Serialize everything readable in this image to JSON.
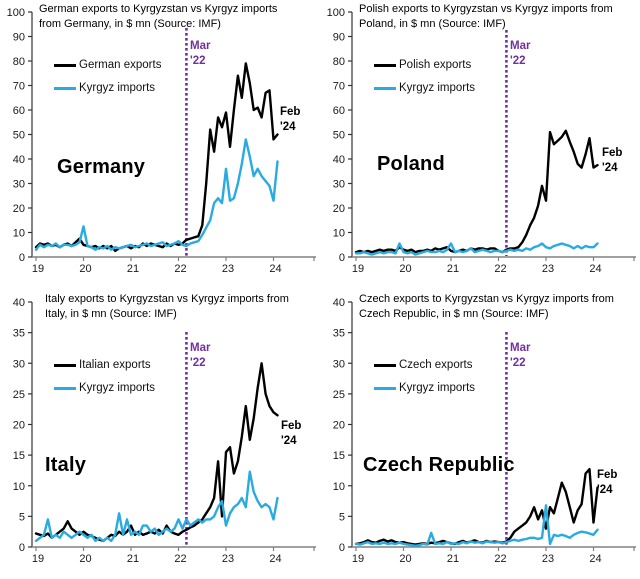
{
  "colors": {
    "export_line": "#000000",
    "import_line": "#29ABE2",
    "vline": "#7030A0",
    "x_axis": "#808080",
    "y_axis": "#333333",
    "tick_text": "#1a1a1a"
  },
  "chart_data": [
    {
      "id": "germany",
      "type": "line",
      "title_line1": "German exports to Kyrgyzstan vs Kyrgyz imports",
      "title_line2": "from Germany, in $ mn (Source: IMF)",
      "country_label": "Germany",
      "legend": [
        "German exports",
        "Kyrgyz imports"
      ],
      "ylim": [
        0,
        100
      ],
      "ytick_step": 10,
      "x_tick_labels": [
        "19",
        "20",
        "21",
        "22",
        "23",
        "24"
      ],
      "x_range": "monthly, Jan 2019 to Feb 2024",
      "vline": {
        "label_line1": "Mar",
        "label_line2": "'22",
        "month_index": 38
      },
      "end_label": {
        "line1": "Feb",
        "line2": "'24"
      },
      "series": [
        {
          "key": "exports",
          "name": "German exports",
          "color": "#000000",
          "values": [
            4,
            5.5,
            5,
            5.5,
            4.5,
            5,
            4,
            5,
            5.5,
            4.5,
            6,
            7.5,
            5,
            4.5,
            4,
            4.5,
            3.5,
            4.5,
            3.5,
            4.5,
            2.5,
            3.5,
            4,
            4.5,
            3.5,
            4.5,
            4,
            5.5,
            4.5,
            5.5,
            5,
            4.5,
            4,
            5.5,
            4.5,
            5.5,
            5,
            5.5,
            7,
            7.5,
            8,
            8.5,
            13,
            30,
            52,
            43,
            57,
            53,
            59,
            45,
            60,
            74,
            65,
            79,
            71,
            60,
            61,
            57,
            67,
            68,
            48,
            50
          ]
        },
        {
          "key": "imports",
          "name": "Kyrgyz imports",
          "color": "#29ABE2",
          "values": [
            3,
            5,
            4,
            5,
            4.5,
            5.5,
            4,
            5,
            5,
            4.5,
            5,
            6,
            12.5,
            4.5,
            4,
            3,
            4,
            3.5,
            4.5,
            3,
            4,
            3.5,
            4,
            4.5,
            5,
            4,
            4.5,
            5,
            5.5,
            4.5,
            5,
            5.5,
            6,
            4.5,
            5,
            5.5,
            6.5,
            5,
            4.5,
            5.5,
            6,
            6.5,
            9,
            12,
            15,
            22,
            24,
            22,
            36,
            23,
            24,
            30,
            38,
            48,
            41,
            33,
            36,
            33,
            31,
            29,
            23,
            39
          ]
        }
      ]
    },
    {
      "id": "poland",
      "type": "line",
      "title_line1": "Polish exports to Kyrgyzstan vs Kyrgyz imports from",
      "title_line2": "Poland, in $ mn (Source: IMF)",
      "country_label": "Poland",
      "legend": [
        "Polish exports",
        "Kyrgyz imports"
      ],
      "ylim": [
        0,
        100
      ],
      "ytick_step": 10,
      "x_tick_labels": [
        "19",
        "20",
        "21",
        "22",
        "23",
        "24"
      ],
      "x_range": "monthly, Jan 2019 to Feb 2024",
      "vline": {
        "label_line1": "Mar",
        "label_line2": "'22",
        "month_index": 38
      },
      "end_label": {
        "line1": "Feb",
        "line2": "'24"
      },
      "series": [
        {
          "key": "exports",
          "name": "Polish exports",
          "color": "#000000",
          "values": [
            2,
            2.5,
            2,
            2.5,
            2,
            2.5,
            3,
            2.5,
            3,
            3,
            2.5,
            4,
            3,
            2.5,
            3,
            2,
            2.5,
            2.5,
            3,
            2.5,
            3.5,
            3,
            3.5,
            4,
            2.5,
            2,
            2.5,
            3,
            2.5,
            3.5,
            3,
            3.5,
            3.5,
            3,
            3.5,
            3.5,
            2.5,
            2,
            3,
            3.5,
            3.5,
            4,
            6,
            9,
            13,
            16,
            21,
            29,
            23,
            51,
            46,
            47.5,
            49,
            51.5,
            47,
            43,
            38,
            36.5,
            42,
            48.5,
            36.5,
            37.5
          ]
        },
        {
          "key": "imports",
          "name": "Kyrgyz imports",
          "color": "#29ABE2",
          "values": [
            1.5,
            1.5,
            2,
            1.5,
            1,
            1.5,
            2,
            1.5,
            2,
            2,
            1.5,
            5.5,
            2,
            1.5,
            2,
            1,
            1.5,
            2,
            2.5,
            2,
            2,
            2.5,
            2,
            3,
            5.5,
            2,
            2.5,
            2,
            2.5,
            3.5,
            2,
            2.5,
            3,
            2.5,
            2,
            2.5,
            2.5,
            2,
            2.5,
            3,
            2.5,
            3,
            2.5,
            3.5,
            3,
            4,
            4.5,
            5.5,
            4,
            3.5,
            4.5,
            5,
            5.5,
            5,
            4.5,
            3.5,
            4.5,
            3.5,
            4.5,
            4,
            4,
            5.5
          ]
        }
      ]
    },
    {
      "id": "italy",
      "type": "line",
      "title_line1": "Italy exports to Kyrgyzstan vs Kyrgyz imports from",
      "title_line2": "Italy, in $ mn (Source: IMF)",
      "country_label": "Italy",
      "legend": [
        "Italian exports",
        "Kyrgyz imports"
      ],
      "ylim": [
        0,
        40
      ],
      "ytick_step": 5,
      "x_tick_labels": [
        "19",
        "20",
        "21",
        "22",
        "23",
        "24"
      ],
      "x_range": "monthly, Jan 2019 to Feb 2024",
      "vline": {
        "label_line1": "Mar",
        "label_line2": "'22",
        "month_index": 38
      },
      "end_label": {
        "line1": "Feb",
        "line2": "'24"
      },
      "series": [
        {
          "key": "exports",
          "name": "Italian exports",
          "color": "#000000",
          "values": [
            2.2,
            2,
            1.8,
            2.2,
            1.5,
            2,
            2.5,
            3,
            4.2,
            3,
            2.5,
            2,
            2.5,
            2,
            1.8,
            1.5,
            1.2,
            1,
            1.5,
            2,
            1.8,
            2.5,
            2,
            2.5,
            3.5,
            2,
            2.5,
            2,
            2.2,
            2.5,
            2.2,
            2.8,
            2.2,
            3.5,
            2.5,
            2.2,
            2,
            2.5,
            2.8,
            3.2,
            3.5,
            4,
            4.5,
            5.5,
            6.5,
            8,
            14,
            5,
            15.5,
            16.3,
            12,
            14,
            18,
            23,
            17.5,
            21,
            26,
            30,
            25,
            23,
            22,
            21.5
          ]
        },
        {
          "key": "imports",
          "name": "Kyrgyz imports",
          "color": "#29ABE2",
          "values": [
            1,
            1.5,
            2,
            4.5,
            1.5,
            2,
            1.5,
            2.5,
            2,
            1.5,
            2,
            2.5,
            2,
            1.5,
            2,
            1,
            1.5,
            1,
            1.5,
            1,
            2,
            5.5,
            2,
            4.5,
            2,
            2.5,
            2,
            3.5,
            3.5,
            2.5,
            3,
            2,
            2.5,
            3,
            2.5,
            3,
            4.5,
            3,
            4.5,
            3.5,
            4,
            4.5,
            4,
            4.5,
            4.5,
            5,
            6.5,
            7.5,
            3.5,
            5.5,
            6.5,
            7,
            8,
            6.5,
            12.3,
            9,
            7.5,
            6.5,
            7,
            6.5,
            4.5,
            8
          ]
        }
      ]
    },
    {
      "id": "czech-republic",
      "type": "line",
      "title_line1": "Czech exports to Kyrgyzstan vs Kyrgyz imports from",
      "title_line2": "Czech Republic, in $ mn (Source: IMF)",
      "country_label": "Czech Republic",
      "legend": [
        "Czech exports",
        "Kyrgyz imports"
      ],
      "ylim": [
        0,
        40
      ],
      "ytick_step": 5,
      "x_tick_labels": [
        "19",
        "20",
        "21",
        "22",
        "23",
        "24"
      ],
      "x_range": "monthly, Jan 2019 to Feb 2024",
      "vline": {
        "label_line1": "Mar",
        "label_line2": "'22",
        "month_index": 38
      },
      "end_label": {
        "line1": "Feb",
        "line2": "'24"
      },
      "series": [
        {
          "key": "exports",
          "name": "Czech exports",
          "color": "#000000",
          "values": [
            0.5,
            0.6,
            0.8,
            1.1,
            0.8,
            0.7,
            1,
            1.2,
            0.9,
            1.1,
            0.8,
            0.7,
            0.8,
            0.6,
            0.5,
            0.4,
            0.5,
            0.6,
            0.5,
            0.7,
            0.6,
            0.8,
            1,
            0.8,
            0.6,
            0.5,
            0.8,
            1,
            0.7,
            0.9,
            1.1,
            0.8,
            0.7,
            1,
            0.8,
            0.9,
            0.8,
            0.7,
            0.9,
            1.5,
            2.5,
            3,
            3.5,
            4,
            5,
            6.5,
            4.5,
            6,
            3,
            6.5,
            5.5,
            8,
            10.5,
            9,
            6.5,
            4,
            6,
            7,
            12,
            12.7,
            4,
            9.7
          ]
        },
        {
          "key": "imports",
          "name": "Kyrgyz imports",
          "color": "#29ABE2",
          "values": [
            0.5,
            0.4,
            0.6,
            0.8,
            0.5,
            0.6,
            0.5,
            0.7,
            0.5,
            0.6,
            0.5,
            0.7,
            0.5,
            0.4,
            0.3,
            0.2,
            0.3,
            0.5,
            0.4,
            2.3,
            0.5,
            0.6,
            0.5,
            0.8,
            0.5,
            0.6,
            0.5,
            0.8,
            0.6,
            0.9,
            0.7,
            0.8,
            0.6,
            0.9,
            0.8,
            0.7,
            0.8,
            0.6,
            0.8,
            1,
            1.2,
            1,
            1.2,
            1.3,
            1.5,
            1.5,
            1.3,
            1.5,
            6.8,
            0.5,
            2,
            1.8,
            2,
            1.8,
            1.5,
            2,
            2.3,
            2.5,
            2.4,
            2.2,
            2,
            2.8
          ]
        }
      ]
    }
  ]
}
